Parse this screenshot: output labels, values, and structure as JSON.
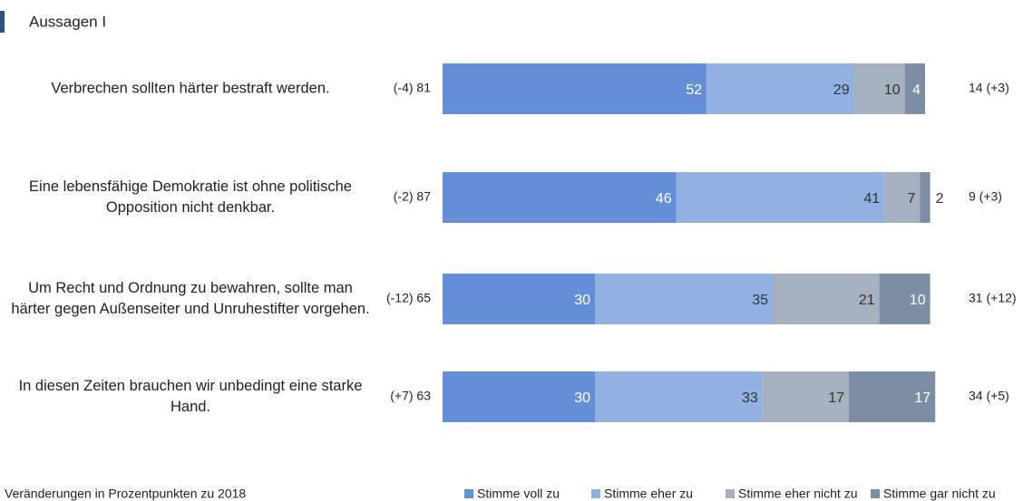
{
  "chart_data": {
    "type": "stacked_barh",
    "title": "Aussagen I",
    "footnote": "Veränderungen in Prozentpunkten zu 2018",
    "categories": [
      "Verbrechen sollten härter bestraft werden.",
      "Eine lebensfähige Demokratie ist ohne politische Opposition nicht denkbar.",
      "Um Recht und Ordnung zu bewahren, sollte man härter gegen Außenseiter und Unruhestifter vorgehen.",
      "In diesen Zeiten brauchen wir unbedingt eine starke Hand."
    ],
    "agree_labels": [
      "(-4) 81",
      "(-2) 87",
      "(-12) 65",
      "(+7) 63"
    ],
    "disagree_labels": [
      "14 (+3)",
      "9 (+3)",
      "31 (+12)",
      "34 (+5)"
    ],
    "series": [
      {
        "name": "Stimme voll zu",
        "color": "#6190d6",
        "label_color": "#ffffff",
        "values": [
          52,
          46,
          30,
          30
        ]
      },
      {
        "name": "Stimme eher zu",
        "color": "#91b1e2",
        "label_color": "#333333",
        "values": [
          29,
          41,
          35,
          33
        ]
      },
      {
        "name": "Stimme eher nicht zu",
        "color": "#a5b1be",
        "label_color": "#333333",
        "values": [
          10,
          7,
          21,
          17
        ]
      },
      {
        "name": "Stimme gar nicht zu",
        "color": "#7b8ea4",
        "label_color": "#ffffff",
        "values": [
          4,
          2,
          10,
          17
        ]
      }
    ],
    "xlim": [
      0,
      100
    ],
    "legend": "bottom-right"
  }
}
